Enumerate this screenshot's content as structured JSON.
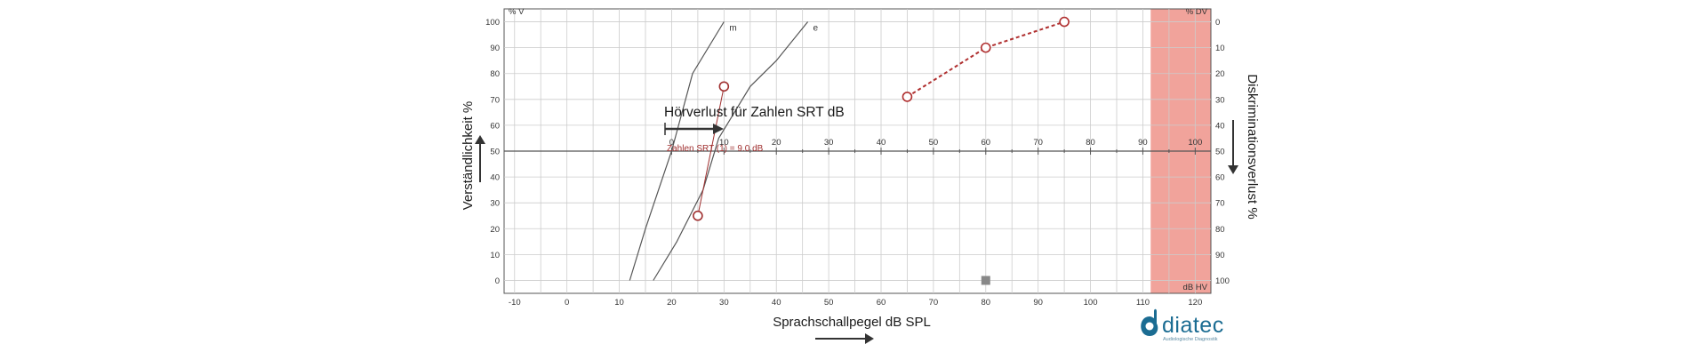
{
  "chart_data": {
    "type": "line",
    "x_axis_bottom": {
      "label": "Sprachschallpegel dB SPL",
      "ticks": [
        -10,
        0,
        10,
        20,
        30,
        40,
        50,
        60,
        70,
        80,
        90,
        100,
        110,
        120
      ],
      "range": [
        -12,
        123
      ]
    },
    "x_axis_hv": {
      "unit_label": "dB HV",
      "ticks": [
        0,
        10,
        20,
        30,
        40,
        50,
        60,
        70,
        80,
        90,
        100
      ],
      "offset_spl": 20
    },
    "y_axis_left": {
      "label": "Verständlichkeit %",
      "unit_label": "% V",
      "ticks": [
        0,
        10,
        20,
        30,
        40,
        50,
        60,
        70,
        80,
        90,
        100
      ],
      "range": [
        -5,
        105
      ]
    },
    "y_axis_right": {
      "label": "Diskriminationsverlust %",
      "unit_label": "% DV",
      "ticks": [
        100,
        90,
        80,
        70,
        60,
        50,
        40,
        30,
        20,
        10,
        0
      ]
    },
    "shaded_region_spl": [
      111.5,
      124
    ],
    "shaded_color": "#f1a39b",
    "reference_curves": [
      {
        "name": "m",
        "points": [
          [
            12,
            0
          ],
          [
            15,
            20
          ],
          [
            20,
            50
          ],
          [
            24,
            80
          ],
          [
            30,
            100
          ]
        ]
      },
      {
        "name": "e",
        "points": [
          [
            16.5,
            0
          ],
          [
            21,
            15
          ],
          [
            26,
            35
          ],
          [
            29,
            55
          ],
          [
            35,
            75
          ],
          [
            40,
            85
          ],
          [
            46,
            100
          ]
        ]
      }
    ],
    "numbers_series": {
      "points": [
        [
          25,
          25
        ],
        [
          30,
          75
        ]
      ],
      "color": "#a03030"
    },
    "words_series": {
      "points": [
        [
          65,
          71
        ],
        [
          80,
          90
        ],
        [
          95,
          100
        ]
      ],
      "color": "#b03030"
    },
    "marker_square": {
      "x": 80,
      "y": 0,
      "color": "#888888"
    },
    "srt": {
      "title": "Hörverlust für Zahlen SRT dB",
      "note": "Zahlen SRT (1) = 9.0 dB"
    }
  },
  "logo": {
    "name": "diatec",
    "tagline": "Audiologische Diagnostik"
  },
  "colors": {
    "grid": "#cccccc",
    "axis": "#555555",
    "reference_curve": "#555555",
    "logo_blue": "#1b6c92"
  }
}
